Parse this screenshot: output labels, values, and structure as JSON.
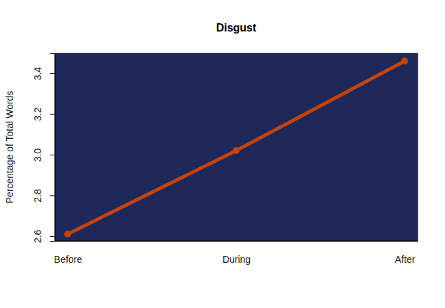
{
  "chart_data": {
    "type": "line",
    "title": "Disgust",
    "y_label": "Percentage of Total Words",
    "categories": [
      "Before",
      "During",
      "After"
    ],
    "series": [
      {
        "name": null,
        "color": "#c1440e",
        "marker": "circle",
        "line_style": "solid",
        "values": [
          2.61,
          3.02,
          3.46
        ]
      }
    ],
    "ylim": [
      2.576,
      3.498
    ],
    "yticks": [
      2.6,
      2.8,
      {
        "value": 3,
        "label": "3.0"
      },
      3.2,
      3.4
    ]
  }
}
